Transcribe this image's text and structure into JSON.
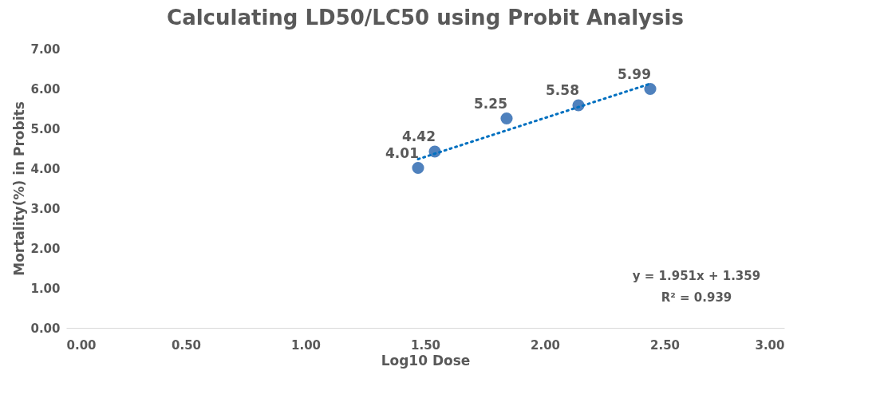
{
  "chart_data": {
    "type": "scatter",
    "title": "Calculating LD50/LC50 using Probit Analysis",
    "xlabel": "Log10 Dose",
    "ylabel": "Mortality(%) in Probits",
    "x": [
      1.47,
      1.54,
      1.84,
      2.14,
      2.44
    ],
    "series": [
      {
        "color": "#4f81bd",
        "values": [
          4.01,
          4.42,
          5.25,
          5.58,
          5.99
        ],
        "value_labels": [
          "4.01",
          "4.42",
          "5.25",
          "5.58",
          "5.99"
        ],
        "marker": "circle"
      },
      {
        "type": "line",
        "color": "#0070c0",
        "line_style": "dotted",
        "x": [
          1.47,
          2.44
        ],
        "values": [
          4.23,
          6.12
        ]
      }
    ],
    "annotations": [
      "y = 1.951x + 1.359",
      "R² = 0.939"
    ],
    "xlim": [
      0,
      3
    ],
    "ylim": [
      0,
      7
    ],
    "xticks": [
      {
        "value": 0,
        "label": "0.00"
      },
      {
        "value": 0.5,
        "label": "0.50"
      },
      {
        "value": 1,
        "label": "1.00"
      },
      {
        "value": 1.5,
        "label": "1.50"
      },
      {
        "value": 2,
        "label": "2.00"
      },
      {
        "value": 2.5,
        "label": "2.50"
      },
      {
        "value": 3,
        "label": "3.00"
      }
    ],
    "yticks": [
      {
        "value": 0,
        "label": "0.00"
      },
      {
        "value": 1,
        "label": "1.00"
      },
      {
        "value": 2,
        "label": "2.00"
      },
      {
        "value": 3,
        "label": "3.00"
      },
      {
        "value": 4,
        "label": "4.00"
      },
      {
        "value": 5,
        "label": "5.00"
      },
      {
        "value": 6,
        "label": "6.00"
      },
      {
        "value": 7,
        "label": "7.00"
      }
    ],
    "grid": false
  }
}
